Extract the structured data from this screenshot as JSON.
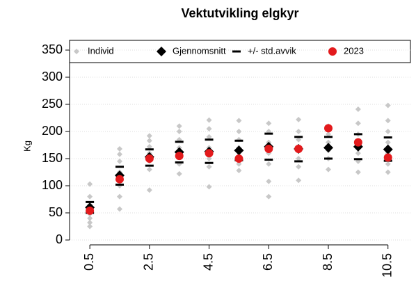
{
  "chart_data": {
    "type": "scatter",
    "title": "Vektutvikling elgkyr",
    "y_label": "Kg",
    "xlim": [
      -0.18,
      11.3
    ],
    "xticks": [
      0.5,
      2.5,
      4.5,
      6.5,
      8.5,
      10.5
    ],
    "ylim": [
      0,
      350
    ],
    "yticks": [
      0,
      50,
      100,
      150,
      200,
      250,
      300,
      350
    ],
    "grid": true,
    "series": [
      {
        "name": "Individ",
        "color": "#c8c8c8",
        "marker": "diamond",
        "x": [
          0.5,
          0.5,
          0.5,
          0.5,
          0.5,
          0.5,
          0.5,
          1.5,
          1.5,
          1.5,
          1.5,
          1.5,
          1.5,
          1.5,
          2.5,
          2.5,
          2.5,
          2.5,
          2.5,
          2.5,
          2.5,
          3.5,
          3.5,
          3.5,
          3.5,
          3.5,
          3.5,
          3.5,
          4.5,
          4.5,
          4.5,
          4.5,
          4.5,
          4.5,
          4.5,
          5.5,
          5.5,
          5.5,
          5.5,
          5.5,
          5.5,
          5.5,
          6.5,
          6.5,
          6.5,
          6.5,
          6.5,
          6.5,
          6.5,
          7.5,
          7.5,
          7.5,
          7.5,
          7.5,
          7.5,
          7.5,
          8.5,
          8.5,
          8.5,
          8.5,
          8.5,
          8.5,
          9.5,
          9.5,
          9.5,
          9.5,
          9.5,
          9.5,
          9.5,
          10.5,
          10.5,
          10.5,
          10.5,
          10.5,
          10.5,
          10.5
        ],
        "values": [
          25,
          32,
          40,
          48,
          65,
          80,
          103,
          57,
          80,
          100,
          125,
          145,
          158,
          168,
          92,
          130,
          145,
          160,
          172,
          183,
          192,
          122,
          140,
          155,
          170,
          185,
          200,
          210,
          98,
          135,
          150,
          170,
          190,
          205,
          221,
          128,
          140,
          155,
          170,
          185,
          200,
          220,
          80,
          108,
          140,
          160,
          180,
          200,
          215,
          110,
          135,
          150,
          170,
          185,
          200,
          222,
          130,
          150,
          165,
          180,
          195,
          210,
          125,
          145,
          160,
          175,
          195,
          215,
          241,
          125,
          140,
          160,
          180,
          200,
          220,
          248
        ]
      },
      {
        "name": "Gjennomsnitt",
        "color": "#000000",
        "marker": "diamond-big",
        "x": [
          0.5,
          1.5,
          2.5,
          3.5,
          4.5,
          5.5,
          6.5,
          7.5,
          8.5,
          9.5,
          10.5
        ],
        "values": [
          60,
          119,
          153,
          162,
          163,
          165,
          172,
          168,
          170,
          172,
          167
        ]
      },
      {
        "name": "+/- std.avvik",
        "color": "#000000",
        "marker": "dash",
        "x": [
          0.5,
          1.5,
          2.5,
          3.5,
          4.5,
          5.5,
          6.5,
          7.5,
          8.5,
          9.5,
          10.5
        ],
        "upper": [
          70,
          135,
          167,
          181,
          185,
          183,
          196,
          190,
          190,
          195,
          189
        ],
        "lower": [
          50,
          102,
          137,
          143,
          142,
          147,
          148,
          145,
          150,
          149,
          146
        ]
      },
      {
        "name": "2023",
        "color": "#e31a1c",
        "marker": "circle",
        "x": [
          0.5,
          1.5,
          2.5,
          3.5,
          4.5,
          5.5,
          6.5,
          7.5,
          8.5,
          9.5,
          10.5
        ],
        "values": [
          54,
          112,
          150,
          155,
          160,
          150,
          168,
          168,
          206,
          180,
          152
        ]
      }
    ]
  }
}
